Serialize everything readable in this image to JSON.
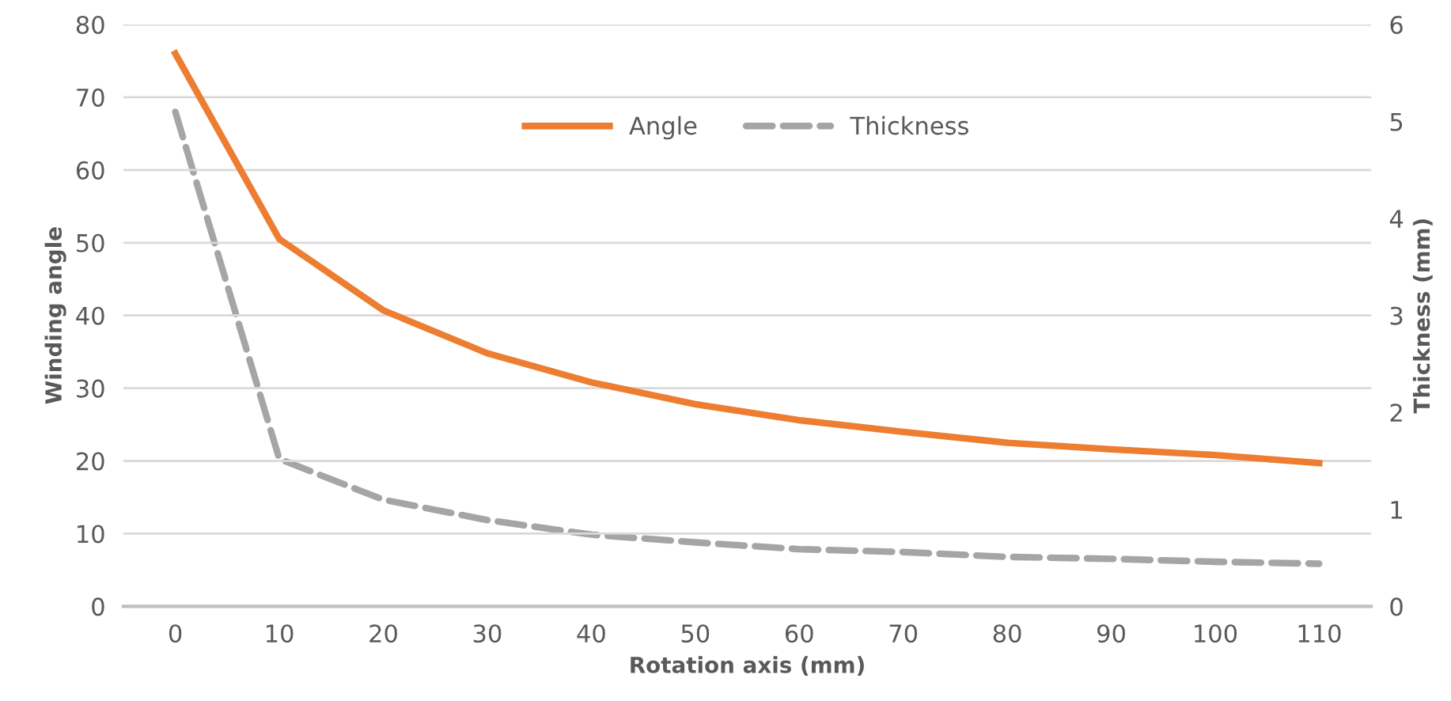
{
  "chart_data": {
    "type": "line",
    "xlabel": "Rotation axis (mm)",
    "ylabel": "Winding angle",
    "y2label": "Thickness (mm)",
    "x": [
      0,
      10,
      20,
      30,
      40,
      50,
      60,
      70,
      80,
      90,
      100,
      110
    ],
    "xlim": [
      -5,
      115
    ],
    "xticks": [
      0,
      10,
      20,
      30,
      40,
      50,
      60,
      70,
      80,
      90,
      100,
      110
    ],
    "ylim": [
      0,
      80
    ],
    "yticks": [
      0,
      10,
      20,
      30,
      40,
      50,
      60,
      70,
      80
    ],
    "y2lim": [
      0,
      6
    ],
    "y2ticks": [
      0,
      1,
      2,
      3,
      4,
      5,
      6
    ],
    "grid": "y",
    "legend": "top",
    "marker": "none",
    "series": [
      {
        "name": "Angle",
        "color": "#ed7d31",
        "line_style": "solid",
        "values": [
          76,
          50.5,
          40.7,
          34.8,
          30.8,
          27.8,
          25.6,
          24.0,
          22.5,
          21.6,
          20.8,
          19.7
        ]
      },
      {
        "name": "Thickness",
        "color": "#a5a5a5",
        "line_style": "dashed",
        "axis": "y2",
        "values": [
          5.1,
          1.52,
          1.1,
          0.89,
          0.74,
          0.66,
          0.59,
          0.56,
          0.51,
          0.49,
          0.46,
          0.44
        ]
      }
    ]
  }
}
